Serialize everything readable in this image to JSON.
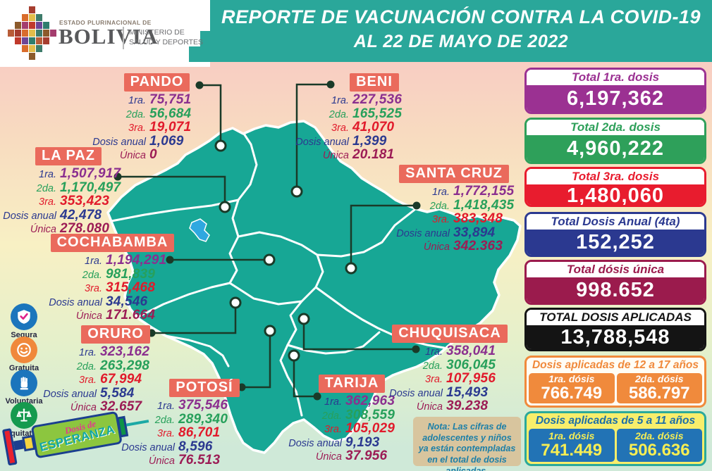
{
  "header": {
    "estado": "ESTADO PLURINACIONAL DE",
    "country": "BOLIVIA",
    "ministry_line1": "MINISTERIO DE",
    "ministry_line2": "SALUD Y DEPORTES",
    "title_line1": "REPORTE DE VACUNACIÓN CONTRA LA COVID-19",
    "title_line2": "AL 22 DE MAYO DE 2022"
  },
  "row_labels": {
    "first": "1ra.",
    "second": "2da.",
    "third": "3ra.",
    "annual": "Dosis anual",
    "single": "Única"
  },
  "departments": [
    {
      "name": "PANDO",
      "first": "75,751",
      "second": "56,684",
      "third": "19,071",
      "annual": "1,069",
      "single": "0"
    },
    {
      "name": "BENI",
      "first": "227,536",
      "second": "165,525",
      "third": "41,070",
      "annual": "1,399",
      "single": "20.181"
    },
    {
      "name": "LA PAZ",
      "first": "1,507,917",
      "second": "1,170,497",
      "third": "353,423",
      "annual": "42,478",
      "single": "278.080"
    },
    {
      "name": "SANTA CRUZ",
      "first": "1,772,155",
      "second": "1,418,435",
      "third": "383,348",
      "annual": "33,894",
      "single": "342.363"
    },
    {
      "name": "COCHABAMBA",
      "first": "1,194,291",
      "second": "981,839",
      "third": "315,468",
      "annual": "34,546",
      "single": "171.664"
    },
    {
      "name": "ORURO",
      "first": "323,162",
      "second": "263,298",
      "third": "67,994",
      "annual": "5,584",
      "single": "32.657"
    },
    {
      "name": "POTOSÍ",
      "first": "375,546",
      "second": "289,340",
      "third": "86,701",
      "annual": "8,596",
      "single": "76.513"
    },
    {
      "name": "TARIJA",
      "first": "362,963",
      "second": "308,559",
      "third": "105,029",
      "annual": "9,193",
      "single": "37.956"
    },
    {
      "name": "CHUQUISACA",
      "first": "358,041",
      "second": "306,045",
      "third": "107,956",
      "annual": "15,493",
      "single": "39.238"
    }
  ],
  "totals": [
    {
      "label": "Total 1ra. dosis",
      "value": "6,197,362",
      "color": "#9b3192"
    },
    {
      "label": "Total 2da. dosis",
      "value": "4,960,222",
      "color": "#2ea05a"
    },
    {
      "label": "Total 3ra. dosis",
      "value": "1,480,060",
      "color": "#e81c2e"
    },
    {
      "label": "Total Dosis Anual (4ta)",
      "value": "152,252",
      "color": "#2b3990"
    },
    {
      "label": "Total dósis única",
      "value": "998.652",
      "color": "#9b1b4d"
    },
    {
      "label": "TOTAL DOSIS APLICADAS",
      "value": "13,788,548",
      "color": "#141414"
    }
  ],
  "age_groups": [
    {
      "title": "Dosis aplicadas de 12 a 17 años",
      "first_label": "1ra. dósis",
      "first_value": "766.749",
      "second_label": "2da. dósis",
      "second_value": "586.797",
      "color": "#f08a3c"
    },
    {
      "title": "Dosis aplicadas de 5 a 11 años",
      "first_label": "1ra. dósis",
      "first_value": "741.449",
      "second_label": "2da. dósis",
      "second_value": "506.636",
      "color": "#2273b5"
    }
  ],
  "pledges": [
    {
      "label": "Segura",
      "icon": "shield-check-icon"
    },
    {
      "label": "Gratuita",
      "icon": "smiley-icon"
    },
    {
      "label": "Voluntaria",
      "icon": "raised-hand-icon"
    },
    {
      "label": "Equitativa",
      "icon": "balance-scale-icon"
    }
  ],
  "note": {
    "label": "Nota:",
    "text": " Las cifras de adolescentes y niños ya están contempladas en el total de dosis aplicadas."
  },
  "syringe": {
    "line1": "Dosis de",
    "line2": "ESPERANZA"
  },
  "colors": {
    "banner_teal": "#2aa79a",
    "map_teal": "#17a795",
    "department_label_bg": "#ea6a5c",
    "dose1": "#8b2f8f",
    "dose2": "#27a05b",
    "dose3": "#e11a2b",
    "dose_annual": "#2b3990",
    "dose_single": "#9c1c55",
    "lake": "#2fa8e0"
  }
}
